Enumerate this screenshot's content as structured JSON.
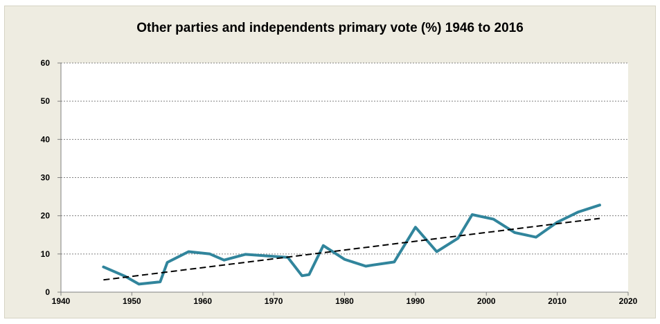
{
  "chart_data": {
    "type": "line",
    "title": "Other parties and independents primary vote (%) 1946 to 2016",
    "xlabel": "",
    "ylabel": "",
    "xlim": [
      1940,
      2020
    ],
    "ylim": [
      0,
      60
    ],
    "x_ticks": [
      1940,
      1950,
      1960,
      1970,
      1980,
      1990,
      2000,
      2010,
      2020
    ],
    "y_ticks": [
      0,
      10,
      20,
      30,
      40,
      50,
      60
    ],
    "grid": "horizontal dotted",
    "legend": "none",
    "series": [
      {
        "x": [
          1946,
          1949,
          1951,
          1954,
          1955,
          1958,
          1961,
          1963,
          1966,
          1969,
          1972,
          1974,
          1975,
          1977,
          1980,
          1983,
          1984,
          1987,
          1990,
          1993,
          1996,
          1998,
          2001,
          2004,
          2007,
          2010,
          2013,
          2016
        ],
        "values": [
          6.6,
          4.2,
          2.1,
          2.7,
          7.8,
          10.6,
          10.0,
          8.4,
          9.9,
          9.5,
          9.1,
          4.3,
          4.6,
          12.2,
          8.6,
          6.8,
          7.1,
          7.9,
          17.0,
          10.6,
          14.1,
          20.3,
          19.1,
          15.6,
          14.4,
          18.3,
          21.0,
          22.8
        ],
        "color": "#31859c"
      },
      {
        "type": "trend",
        "x": [
          1946,
          2016
        ],
        "values": [
          3.2,
          19.3
        ],
        "color": "#000000",
        "style": "dashed"
      }
    ]
  }
}
